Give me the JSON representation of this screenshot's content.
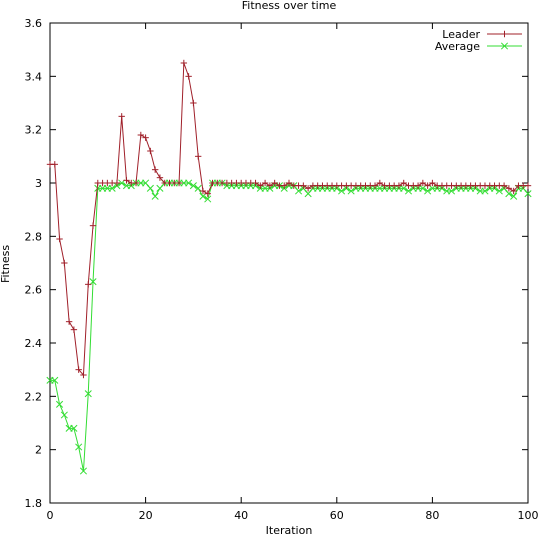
{
  "chart_data": {
    "type": "line",
    "title": "Fitness over time",
    "xlabel": "Iteration",
    "ylabel": "Fitness",
    "xlim": [
      0,
      100
    ],
    "ylim": [
      1.8,
      3.6
    ],
    "x_ticks": [
      0,
      20,
      40,
      60,
      80,
      100
    ],
    "y_ticks": [
      1.8,
      2,
      2.2,
      2.4,
      2.6,
      2.8,
      3,
      3.2,
      3.4,
      3.6
    ],
    "y_tick_labels": [
      "1.8",
      "2",
      "2.2",
      "2.4",
      "2.6",
      "2.8",
      "3",
      "3.2",
      "3.4",
      "3.6"
    ],
    "grid": false,
    "legend_position": "top-right",
    "series": [
      {
        "name": "Leader",
        "color": "#a0202a",
        "marker": "plus",
        "x": [
          0,
          1,
          2,
          3,
          4,
          5,
          6,
          7,
          8,
          9,
          10,
          11,
          12,
          13,
          14,
          15,
          16,
          17,
          18,
          19,
          20,
          21,
          22,
          23,
          24,
          25,
          26,
          27,
          28,
          29,
          30,
          31,
          32,
          33,
          34,
          35,
          36,
          37,
          38,
          39,
          40,
          41,
          42,
          43,
          44,
          45,
          46,
          47,
          48,
          49,
          50,
          51,
          52,
          53,
          54,
          55,
          56,
          57,
          58,
          59,
          60,
          61,
          62,
          63,
          64,
          65,
          66,
          67,
          68,
          69,
          70,
          71,
          72,
          73,
          74,
          75,
          76,
          77,
          78,
          79,
          80,
          81,
          82,
          83,
          84,
          85,
          86,
          87,
          88,
          89,
          90,
          91,
          92,
          93,
          94,
          95,
          96,
          97,
          98,
          99,
          100
        ],
        "y": [
          3.07,
          3.07,
          2.79,
          2.7,
          2.48,
          2.45,
          2.3,
          2.28,
          2.62,
          2.84,
          3.0,
          3.0,
          3.0,
          3.0,
          3.0,
          3.25,
          3.01,
          3.0,
          3.0,
          3.18,
          3.17,
          3.12,
          3.05,
          3.02,
          3.0,
          3.0,
          3.0,
          3.0,
          3.45,
          3.4,
          3.3,
          3.1,
          2.97,
          2.96,
          3.0,
          3.0,
          3.0,
          3.0,
          3.0,
          3.0,
          3.0,
          3.0,
          3.0,
          3.0,
          2.99,
          3.0,
          2.99,
          3.0,
          2.99,
          2.99,
          3.0,
          2.99,
          2.99,
          2.99,
          2.98,
          2.99,
          2.99,
          2.99,
          2.99,
          2.99,
          2.99,
          2.99,
          2.99,
          2.99,
          2.99,
          2.99,
          2.99,
          2.99,
          2.99,
          3.0,
          2.99,
          2.99,
          2.99,
          2.99,
          3.0,
          2.99,
          2.99,
          2.99,
          3.0,
          2.99,
          3.0,
          2.99,
          2.99,
          2.99,
          2.99,
          2.99,
          2.99,
          2.99,
          2.99,
          2.99,
          2.99,
          2.99,
          2.99,
          2.99,
          2.99,
          2.99,
          2.98,
          2.97,
          2.99,
          2.99,
          2.99
        ]
      },
      {
        "name": "Average",
        "color": "#33dd33",
        "marker": "x",
        "x": [
          0,
          1,
          2,
          3,
          4,
          5,
          6,
          7,
          8,
          9,
          10,
          11,
          12,
          13,
          14,
          15,
          16,
          17,
          18,
          19,
          20,
          21,
          22,
          23,
          24,
          25,
          26,
          27,
          28,
          29,
          30,
          31,
          32,
          33,
          34,
          35,
          36,
          37,
          38,
          39,
          40,
          41,
          42,
          43,
          44,
          45,
          46,
          47,
          48,
          49,
          50,
          51,
          52,
          53,
          54,
          55,
          56,
          57,
          58,
          59,
          60,
          61,
          62,
          63,
          64,
          65,
          66,
          67,
          68,
          69,
          70,
          71,
          72,
          73,
          74,
          75,
          76,
          77,
          78,
          79,
          80,
          81,
          82,
          83,
          84,
          85,
          86,
          87,
          88,
          89,
          90,
          91,
          92,
          93,
          94,
          95,
          96,
          97,
          98,
          99,
          100
        ],
        "y": [
          2.26,
          2.26,
          2.17,
          2.13,
          2.08,
          2.08,
          2.01,
          1.92,
          2.21,
          2.63,
          2.98,
          2.98,
          2.98,
          2.98,
          2.99,
          3.0,
          2.99,
          2.99,
          3.0,
          3.0,
          3.0,
          2.98,
          2.95,
          2.98,
          3.0,
          3.0,
          3.0,
          3.0,
          3.0,
          3.0,
          2.99,
          2.98,
          2.95,
          2.94,
          3.0,
          3.0,
          3.0,
          2.99,
          2.99,
          2.99,
          2.99,
          2.99,
          2.99,
          2.99,
          2.98,
          2.98,
          2.98,
          2.99,
          2.99,
          2.98,
          2.99,
          2.99,
          2.97,
          2.98,
          2.96,
          2.98,
          2.98,
          2.98,
          2.98,
          2.98,
          2.98,
          2.97,
          2.98,
          2.97,
          2.98,
          2.98,
          2.98,
          2.98,
          2.98,
          2.98,
          2.98,
          2.98,
          2.98,
          2.98,
          2.98,
          2.97,
          2.98,
          2.98,
          2.98,
          2.97,
          2.98,
          2.98,
          2.98,
          2.97,
          2.97,
          2.98,
          2.98,
          2.98,
          2.98,
          2.98,
          2.97,
          2.97,
          2.98,
          2.98,
          2.97,
          2.98,
          2.96,
          2.95,
          2.98,
          2.98,
          2.96
        ]
      }
    ]
  }
}
